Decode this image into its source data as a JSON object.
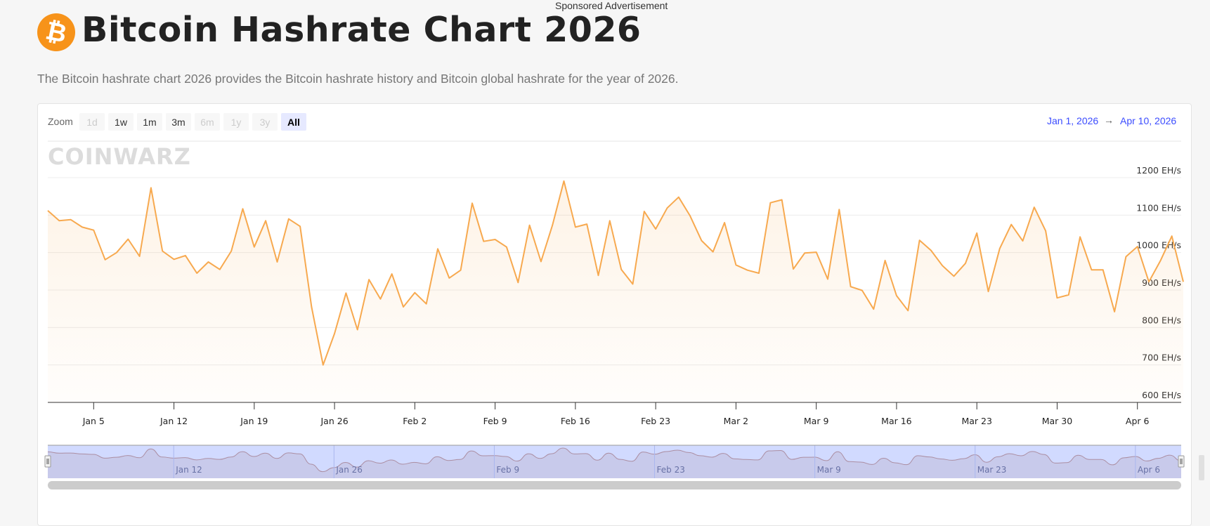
{
  "sponsored": "Sponsored Advertisement",
  "header": {
    "logo_icon": "bitcoin-icon",
    "logo_glyph": "₿",
    "title": "Bitcoin Hashrate Chart 2026",
    "subtitle": "The Bitcoin hashrate chart 2026 provides the Bitcoin hashrate history and Bitcoin global hashrate for the year of 2026."
  },
  "toolbar": {
    "zoom_label": "Zoom",
    "buttons": [
      {
        "label": "1d",
        "state": "disabled"
      },
      {
        "label": "1w",
        "state": "enabled"
      },
      {
        "label": "1m",
        "state": "enabled"
      },
      {
        "label": "3m",
        "state": "enabled"
      },
      {
        "label": "6m",
        "state": "disabled"
      },
      {
        "label": "1y",
        "state": "disabled"
      },
      {
        "label": "3y",
        "state": "disabled"
      },
      {
        "label": "All",
        "state": "active"
      }
    ],
    "range_from": "Jan 1, 2026",
    "range_arrow": "→",
    "range_to": "Apr 10, 2026"
  },
  "watermark": "COINWARZ",
  "colors": {
    "line": "#f7a94f",
    "accent": "#3b4cff",
    "navigator": "#d3d8fa"
  },
  "chart_data": {
    "type": "area",
    "title": "",
    "xlabel": "",
    "ylabel": "",
    "x_start": "2026-01-01",
    "x_end": "2026-04-10",
    "x_interval": "daily",
    "y_unit": "EH/s",
    "ylim": [
      600,
      1200
    ],
    "yticks": [
      "600 EH/s",
      "700 EH/s",
      "800 EH/s",
      "900 EH/s",
      "1000 EH/s",
      "1100 EH/s",
      "1200 EH/s"
    ],
    "ytick_values": [
      600,
      700,
      800,
      900,
      1000,
      1100,
      1200
    ],
    "xticks": [
      {
        "date": "2026-01-05",
        "label": "Jan 5"
      },
      {
        "date": "2026-01-12",
        "label": "Jan 12"
      },
      {
        "date": "2026-01-19",
        "label": "Jan 19"
      },
      {
        "date": "2026-01-26",
        "label": "Jan 26"
      },
      {
        "date": "2026-02-02",
        "label": "Feb 2"
      },
      {
        "date": "2026-02-09",
        "label": "Feb 9"
      },
      {
        "date": "2026-02-16",
        "label": "Feb 16"
      },
      {
        "date": "2026-02-23",
        "label": "Feb 23"
      },
      {
        "date": "2026-03-02",
        "label": "Mar 2"
      },
      {
        "date": "2026-03-09",
        "label": "Mar 9"
      },
      {
        "date": "2026-03-16",
        "label": "Mar 16"
      },
      {
        "date": "2026-03-23",
        "label": "Mar 23"
      },
      {
        "date": "2026-03-30",
        "label": "Mar 30"
      },
      {
        "date": "2026-04-06",
        "label": "Apr 6"
      }
    ],
    "navigator_ticks": [
      {
        "date": "2026-01-12",
        "label": "Jan 12"
      },
      {
        "date": "2026-01-26",
        "label": "Jan 26"
      },
      {
        "date": "2026-02-09",
        "label": "Feb 9"
      },
      {
        "date": "2026-02-23",
        "label": "Feb 23"
      },
      {
        "date": "2026-03-09",
        "label": "Mar 9"
      },
      {
        "date": "2026-03-23",
        "label": "Mar 23"
      },
      {
        "date": "2026-04-06",
        "label": "Apr 6"
      }
    ],
    "grid": true,
    "legend": "none",
    "values": [
      1112,
      1085,
      1088,
      1068,
      1060,
      981,
      1000,
      1036,
      990,
      1173,
      1004,
      982,
      992,
      945,
      975,
      955,
      1004,
      1117,
      1015,
      1085,
      975,
      1090,
      1070,
      855,
      700,
      784,
      892,
      794,
      928,
      876,
      943,
      855,
      893,
      863,
      1010,
      932,
      953,
      1132,
      1030,
      1035,
      1015,
      920,
      1073,
      976,
      1073,
      1191,
      1068,
      1076,
      939,
      1085,
      955,
      916,
      1110,
      1063,
      1119,
      1148,
      1098,
      1032,
      1002,
      1080,
      967,
      953,
      945,
      1133,
      1141,
      956,
      999,
      1001,
      929,
      1115,
      909,
      899,
      849,
      979,
      885,
      845,
      1033,
      1006,
      965,
      937,
      971,
      1052,
      896,
      1011,
      1075,
      1031,
      1121,
      1058,
      879,
      887,
      1042,
      954,
      954,
      842,
      989,
      1016,
      922,
      978,
      1044,
      922
    ]
  }
}
